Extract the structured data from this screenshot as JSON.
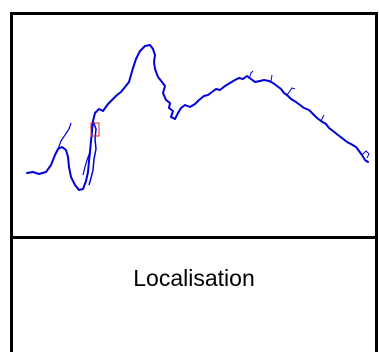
{
  "caption": {
    "text": "Localisation"
  },
  "colors": {
    "river": "#0000dd",
    "marker": "#dd2222",
    "frame": "#000000"
  },
  "map": {
    "marker_icon": "red-locator-rectangle"
  }
}
